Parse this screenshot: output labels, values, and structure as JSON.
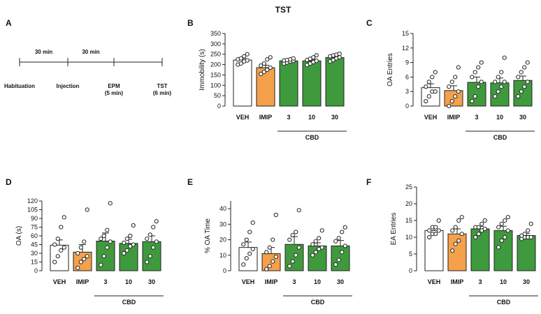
{
  "figure": {
    "title": "TST"
  },
  "timeline": {
    "letter": "A",
    "intervals": [
      "30 min",
      "30 min"
    ],
    "events": [
      {
        "lines": [
          "Habituation"
        ]
      },
      {
        "lines": [
          "Injection"
        ]
      },
      {
        "lines": [
          "EPM",
          "(5 min)"
        ]
      },
      {
        "lines": [
          "TST",
          "(6 min)"
        ]
      }
    ]
  },
  "colors": {
    "VEH": "#ffffff",
    "IMIP": "#f5a04a",
    "CBD": "#3f9a3e"
  },
  "chart_data": [
    {
      "letter": "B",
      "type": "bar",
      "categories": [
        "VEH",
        "IMIP",
        "3",
        "10",
        "30"
      ],
      "group_label": "CBD",
      "ylabel": "Immobility (s)",
      "ylim": [
        0,
        350
      ],
      "yticks": [
        0,
        50,
        100,
        150,
        200,
        250,
        300,
        350
      ],
      "values": [
        222,
        185,
        218,
        218,
        234
      ],
      "sem": [
        8,
        12,
        6,
        7,
        7
      ],
      "points": [
        [
          200,
          205,
          215,
          220,
          225,
          230,
          240,
          250
        ],
        [
          155,
          165,
          175,
          185,
          195,
          205,
          225,
          235
        ],
        [
          205,
          210,
          215,
          218,
          220,
          222,
          225,
          230
        ],
        [
          198,
          205,
          212,
          218,
          222,
          228,
          235,
          245
        ],
        [
          215,
          222,
          230,
          235,
          240,
          244,
          248,
          252
        ]
      ]
    },
    {
      "letter": "C",
      "type": "bar",
      "categories": [
        "VEH",
        "IMIP",
        "3",
        "10",
        "30"
      ],
      "group_label": "CBD",
      "ylabel": "OA Entries",
      "ylim": [
        0,
        15
      ],
      "yticks": [
        0,
        3,
        6,
        9,
        12,
        15
      ],
      "values": [
        3.8,
        3.2,
        4.9,
        4.8,
        5.3
      ],
      "sem": [
        0.8,
        1.0,
        1.1,
        1.0,
        0.9
      ],
      "points": [
        [
          1,
          2,
          3,
          3,
          4,
          5,
          6,
          7
        ],
        [
          0,
          1,
          2,
          3,
          4,
          5,
          6,
          8
        ],
        [
          1,
          2,
          4,
          5,
          6,
          7,
          8,
          9
        ],
        [
          2,
          3,
          4,
          5,
          5,
          6,
          7,
          10
        ],
        [
          2,
          3,
          4,
          5,
          6,
          7,
          8,
          9
        ]
      ]
    },
    {
      "letter": "D",
      "type": "bar",
      "categories": [
        "VEH",
        "IMIP",
        "3",
        "10",
        "30"
      ],
      "group_label": "CBD",
      "ylabel": "OA (s)",
      "ylim": [
        0,
        120
      ],
      "yticks": [
        0,
        15,
        30,
        45,
        60,
        75,
        90,
        105,
        120
      ],
      "values": [
        44,
        32,
        51,
        47,
        50
      ],
      "sem": [
        9,
        13,
        14,
        7,
        10
      ],
      "points": [
        [
          15,
          25,
          35,
          40,
          45,
          55,
          75,
          92
        ],
        [
          5,
          15,
          20,
          25,
          30,
          40,
          50,
          105
        ],
        [
          10,
          25,
          40,
          50,
          55,
          60,
          70,
          116
        ],
        [
          30,
          35,
          42,
          45,
          48,
          55,
          60,
          78
        ],
        [
          15,
          25,
          40,
          50,
          55,
          62,
          75,
          85
        ]
      ]
    },
    {
      "letter": "E",
      "type": "bar",
      "categories": [
        "VEH",
        "IMIP",
        "3",
        "10",
        "30"
      ],
      "group_label": "CBD",
      "ylabel": "% OA Time",
      "ylim": [
        0,
        45
      ],
      "yticks": [
        0,
        10,
        20,
        30,
        40
      ],
      "values": [
        15,
        11,
        17,
        16,
        16
      ],
      "sem": [
        3.5,
        4,
        5,
        2,
        3.5
      ],
      "points": [
        [
          4,
          8,
          11,
          14,
          17,
          20,
          25,
          31
        ],
        [
          1,
          3,
          6,
          9,
          12,
          15,
          20,
          36
        ],
        [
          3,
          6,
          10,
          15,
          20,
          23,
          25,
          39
        ],
        [
          10,
          12,
          14,
          15,
          17,
          19,
          21,
          26
        ],
        [
          4,
          7,
          12,
          16,
          19,
          21,
          25,
          28
        ]
      ]
    },
    {
      "letter": "F",
      "type": "bar",
      "categories": [
        "VEH",
        "IMIP",
        "3",
        "10",
        "30"
      ],
      "group_label": "CBD",
      "ylabel": "EA Entries",
      "ylim": [
        0,
        25
      ],
      "yticks": [
        0,
        5,
        10,
        15,
        20,
        25
      ],
      "values": [
        12,
        11,
        12.5,
        12,
        10.5
      ],
      "sem": [
        0.8,
        1.5,
        0.7,
        1.3,
        0.6
      ],
      "points": [
        [
          10,
          11,
          11,
          12,
          12,
          13,
          13,
          15
        ],
        [
          6,
          8,
          9,
          11,
          12,
          13,
          15,
          16
        ],
        [
          10,
          11,
          12,
          12.5,
          13,
          13,
          14,
          15
        ],
        [
          7,
          9,
          10,
          12,
          13,
          14,
          15,
          16
        ],
        [
          9.5,
          10,
          10,
          10,
          10.5,
          11,
          12,
          14
        ]
      ]
    }
  ]
}
